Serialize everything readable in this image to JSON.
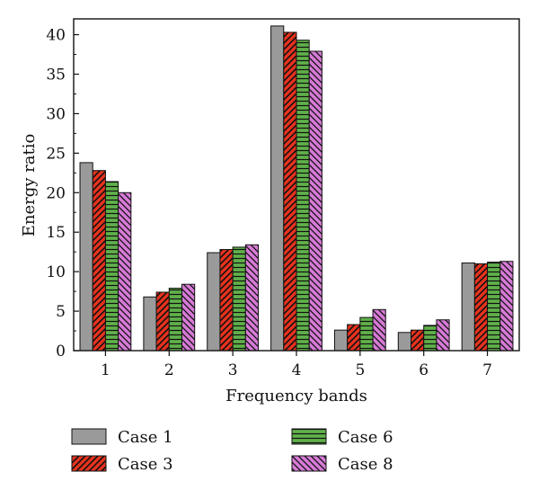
{
  "chart_data": {
    "type": "bar",
    "xlabel": "Frequency bands",
    "ylabel": "Energy ratio",
    "ylim": [
      0,
      42
    ],
    "yticks": [
      "0",
      "5",
      "10",
      "15",
      "20",
      "25",
      "30",
      "35",
      "40"
    ],
    "categories": [
      "1",
      "2",
      "3",
      "4",
      "5",
      "6",
      "7"
    ],
    "series": [
      {
        "name": "Case 1",
        "pattern": "solid",
        "color": "#9a9a9a",
        "values": [
          23.8,
          6.8,
          12.4,
          41.1,
          2.6,
          2.3,
          11.1
        ]
      },
      {
        "name": "Case 3",
        "pattern": "diagonal",
        "color": "#e8321e",
        "values": [
          22.8,
          7.4,
          12.8,
          40.3,
          3.3,
          2.6,
          11.0
        ]
      },
      {
        "name": "Case 6",
        "pattern": "horizontal",
        "color": "#5fb04a",
        "values": [
          21.4,
          7.9,
          13.1,
          39.3,
          4.2,
          3.2,
          11.2
        ]
      },
      {
        "name": "Case 8",
        "pattern": "diagonal",
        "color": "#d67ad6",
        "values": [
          20.0,
          8.4,
          13.4,
          37.9,
          5.2,
          3.9,
          11.3
        ]
      }
    ],
    "legend_position": "bottom",
    "grid": false
  }
}
